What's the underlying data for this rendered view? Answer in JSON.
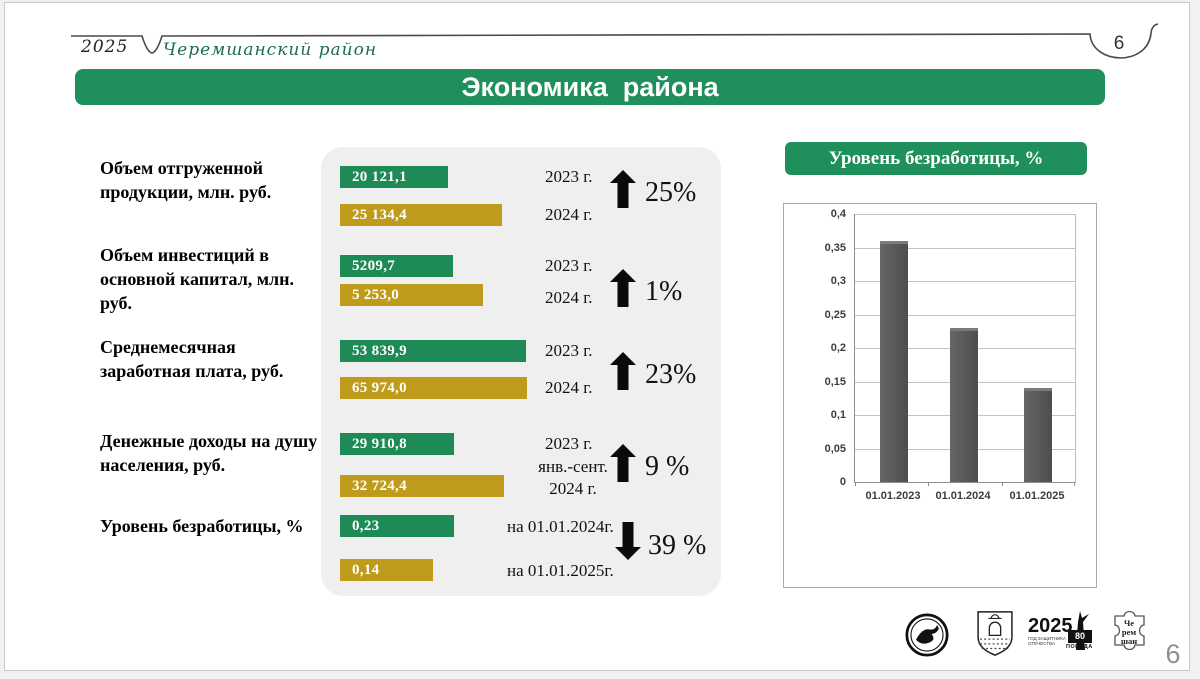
{
  "colors": {
    "green_bar": "#1e8a55",
    "green_header": "#1f8f5b",
    "gold_bar": "#bf9b1c",
    "script_green": "#1b6f4a",
    "chart_bar_gray": "#565656"
  },
  "header": {
    "year": "2025",
    "district": "Черемшанский район",
    "page_circle": "6",
    "title": "Экономика  района"
  },
  "metrics": [
    {
      "label": "Объем отгруженной продукции, млн. руб.",
      "rows": [
        {
          "value": "20 121,1",
          "period": "2023 г."
        },
        {
          "value": "25 134,4",
          "period": "2024 г."
        }
      ],
      "change": {
        "direction": "up",
        "text": "25%"
      }
    },
    {
      "label": "Объем инвестиций в основной капитал, млн. руб.",
      "rows": [
        {
          "value": "5209,7",
          "period": "2023 г."
        },
        {
          "value": "5 253,0",
          "period": "2024 г."
        }
      ],
      "change": {
        "direction": "up",
        "text": "1%"
      }
    },
    {
      "label": "Среднемесячная заработная плата, руб.",
      "rows": [
        {
          "value": "53 839,9",
          "period": "2023 г."
        },
        {
          "value": "65 974,0",
          "period": "2024 г."
        }
      ],
      "change": {
        "direction": "up",
        "text": "23%"
      }
    },
    {
      "label": "Денежные доходы на душу населения, руб.",
      "rows": [
        {
          "value": "29 910,8",
          "period": "2023 г."
        },
        {
          "value": "32 724,4",
          "period_line1": "янв.-сент.",
          "period_line2": "2024 г."
        }
      ],
      "change": {
        "direction": "up",
        "text": "9 %"
      }
    },
    {
      "label": "Уровень безработицы, %",
      "rows": [
        {
          "value": "0,23",
          "period": "на 01.01.2024г."
        },
        {
          "value": "0,14",
          "period": "на 01.01.2025г."
        }
      ],
      "change": {
        "direction": "down",
        "text": "39 %"
      }
    }
  ],
  "right_panel": {
    "title": "Уровень безработицы, %"
  },
  "chart_data": {
    "type": "bar",
    "title": "Уровень безработицы, %",
    "categories": [
      "01.01.2023",
      "01.01.2024",
      "01.01.2025"
    ],
    "values": [
      0.36,
      0.23,
      0.14
    ],
    "xlabel": "",
    "ylabel": "",
    "ylim": [
      0,
      0.4
    ],
    "ytick_step": 0.05,
    "grid": true,
    "legend": false,
    "bar_color": "#565656"
  },
  "footer": {
    "page_number": "6",
    "logos": {
      "victory": {
        "year": "2025",
        "caption": "ГОД ЗАЩИТНИКА ОТЕЧЕСТВА",
        "num": "80",
        "pobeda": "ПОБЕДА"
      },
      "puzzle": {
        "lines": [
          "Че",
          "рем",
          "шан"
        ]
      }
    }
  }
}
